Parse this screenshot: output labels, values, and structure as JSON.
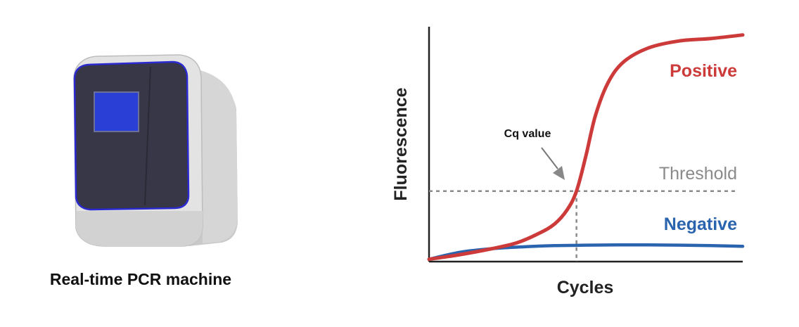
{
  "machine": {
    "caption": "Real-time PCR machine",
    "icon": "pcr-machine-icon",
    "screen_color": "#2a3fd6",
    "body_color": "#dedede",
    "panel_color": "#353545"
  },
  "chart_data": {
    "type": "line",
    "xlabel": "Cycles",
    "ylabel": "Fluorescence",
    "xlim": [
      0,
      1
    ],
    "ylim": [
      0,
      1
    ],
    "grid": false,
    "threshold": {
      "label": "Threshold",
      "y": 0.3,
      "color": "#8a8a8a"
    },
    "cq": {
      "label": "Cq value",
      "x": 0.47
    },
    "series": [
      {
        "name": "Positive",
        "color": "#cc3a3a",
        "x": [
          0,
          0.1,
          0.2,
          0.28,
          0.35,
          0.4,
          0.44,
          0.47,
          0.5,
          0.53,
          0.57,
          0.62,
          0.7,
          0.8,
          0.9,
          1.0
        ],
        "y": [
          0.01,
          0.03,
          0.055,
          0.08,
          0.12,
          0.16,
          0.22,
          0.3,
          0.45,
          0.62,
          0.76,
          0.85,
          0.91,
          0.94,
          0.95,
          0.965
        ]
      },
      {
        "name": "Negative",
        "color": "#2b64ae",
        "x": [
          0,
          0.1,
          0.2,
          0.3,
          0.4,
          0.5,
          0.6,
          0.7,
          0.8,
          0.9,
          1.0
        ],
        "y": [
          0.01,
          0.04,
          0.055,
          0.063,
          0.068,
          0.07,
          0.071,
          0.071,
          0.07,
          0.068,
          0.065
        ]
      }
    ]
  }
}
